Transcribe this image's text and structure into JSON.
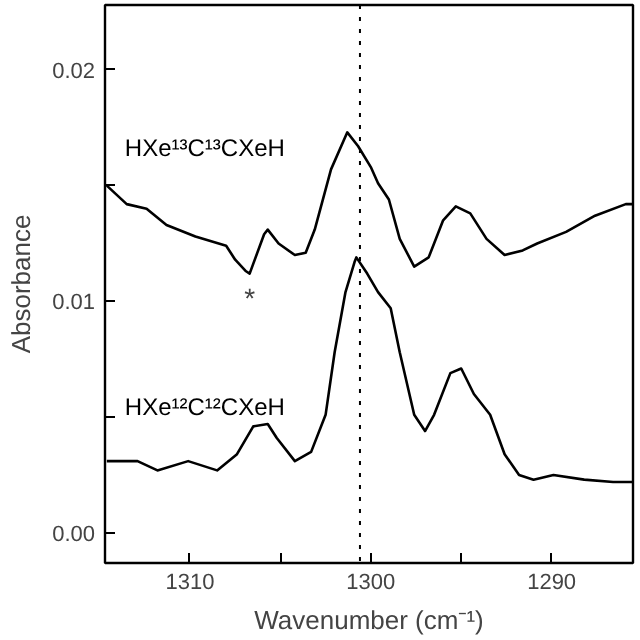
{
  "chart_data": {
    "type": "line",
    "xlabel": "Wavenumber (cm⁻¹)",
    "ylabel": "Absorbance",
    "xlim": [
      1314.7,
      1285.5
    ],
    "ylim": [
      -0.0013,
      0.0228
    ],
    "xticks": [
      1310,
      {
        "value": 1305,
        "label": null
      },
      1300,
      {
        "value": 1295,
        "label": null
      },
      1290
    ],
    "yticks": [
      {
        "value": 0,
        "label": "0.00"
      },
      {
        "value": 0.005,
        "label": null
      },
      {
        "value": 0.01,
        "label": "0.01"
      },
      {
        "value": 0.015,
        "label": null
      },
      {
        "value": 0.02,
        "label": "0.02"
      }
    ],
    "grid": false,
    "marker": "none",
    "line_style": "solid",
    "series": [
      {
        "name": "HXe¹³C¹³CXeH",
        "color": "#000000",
        "x": [
          1314.6,
          1313.5,
          1312.4,
          1311.3,
          1309.7,
          1308.0,
          1307.5,
          1306.9,
          1306.7,
          1305.9,
          1305.7,
          1305.1,
          1304.2,
          1303.6,
          1303.1,
          1302.2,
          1301.3,
          1300.7,
          1300.0,
          1299.6,
          1299.0,
          1298.4,
          1297.6,
          1296.8,
          1296.0,
          1295.3,
          1294.5,
          1293.6,
          1292.6,
          1291.6,
          1290.8,
          1289.2,
          1287.6,
          1285.9,
          1285.5
        ],
        "values": [
          0.015,
          0.0142,
          0.014,
          0.0133,
          0.0128,
          0.0124,
          0.0118,
          0.0113,
          0.0112,
          0.0129,
          0.0131,
          0.0125,
          0.012,
          0.0121,
          0.0131,
          0.0157,
          0.0173,
          0.0167,
          0.0158,
          0.0151,
          0.0144,
          0.0127,
          0.0115,
          0.0119,
          0.0135,
          0.0141,
          0.0138,
          0.0127,
          0.012,
          0.0122,
          0.0125,
          0.013,
          0.0137,
          0.0142,
          0.0142
        ]
      },
      {
        "name": "HXe¹²C¹²CXeH",
        "color": "#000000",
        "x": [
          1314.6,
          1312.9,
          1311.8,
          1310.1,
          1308.5,
          1307.4,
          1306.5,
          1305.7,
          1305.2,
          1304.2,
          1303.3,
          1302.5,
          1302.0,
          1301.4,
          1300.9,
          1300.8,
          1300.2,
          1299.6,
          1298.9,
          1298.4,
          1297.6,
          1297.0,
          1296.5,
          1295.6,
          1295.0,
          1294.3,
          1293.4,
          1292.6,
          1291.8,
          1291.0,
          1289.9,
          1288.2,
          1286.6,
          1285.5
        ],
        "values": [
          0.0031,
          0.0031,
          0.0027,
          0.0031,
          0.0027,
          0.0034,
          0.0046,
          0.0047,
          0.0041,
          0.0031,
          0.0035,
          0.0051,
          0.0078,
          0.0104,
          0.0117,
          0.0119,
          0.0112,
          0.0104,
          0.0097,
          0.0078,
          0.0051,
          0.0044,
          0.0051,
          0.0069,
          0.0071,
          0.006,
          0.0051,
          0.0034,
          0.0025,
          0.0023,
          0.0025,
          0.0023,
          0.0022,
          0.0022
        ]
      }
    ],
    "ref_lines": [
      {
        "axis": "x",
        "value": 1300.6,
        "line_style": "dotted",
        "color": "#000000"
      }
    ],
    "annotations": [
      "*"
    ]
  }
}
